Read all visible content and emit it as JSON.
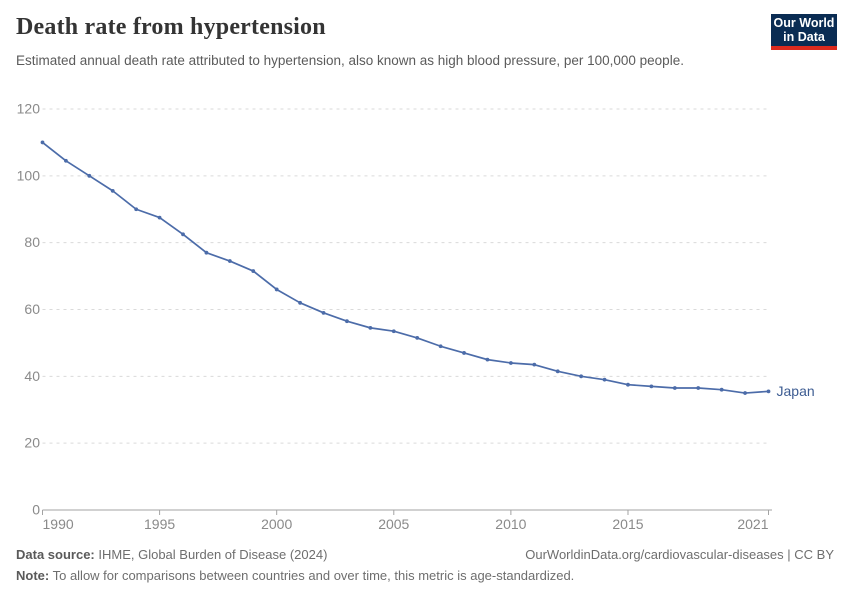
{
  "header": {
    "title": "Death rate from hypertension",
    "subtitle": "Estimated annual death rate attributed to hypertension, also known as high blood pressure, per 100,000 people.",
    "logo": {
      "line1": "Our World",
      "line2": "in Data"
    }
  },
  "chart_data": {
    "type": "line",
    "title": "Death rate from hypertension",
    "x": [
      1990,
      1991,
      1992,
      1993,
      1994,
      1995,
      1996,
      1997,
      1998,
      1999,
      2000,
      2001,
      2002,
      2003,
      2004,
      2005,
      2006,
      2007,
      2008,
      2009,
      2010,
      2011,
      2012,
      2013,
      2014,
      2015,
      2016,
      2017,
      2018,
      2019,
      2020,
      2021
    ],
    "series": [
      {
        "name": "Japan",
        "color": "#4c6ca9",
        "values": [
          110,
          104.5,
          100,
          95.5,
          90,
          87.5,
          82.5,
          77,
          74.5,
          71.5,
          66,
          62,
          59,
          56.5,
          54.5,
          53.5,
          51.5,
          49,
          47,
          45,
          44,
          43.5,
          41.5,
          40,
          39,
          37.5,
          37,
          36.5,
          36.5,
          36,
          35,
          35.5
        ]
      }
    ],
    "xlabel": "",
    "ylabel": "",
    "xlim": [
      1990,
      2021
    ],
    "ylim": [
      0,
      120
    ],
    "x_ticks": [
      1990,
      1995,
      2000,
      2005,
      2010,
      2015,
      2021
    ],
    "y_ticks": [
      0,
      20,
      40,
      60,
      80,
      100,
      120
    ],
    "grid": "horizontal-dashed",
    "legend_position": "end-of-line-label",
    "end_label": "Japan",
    "end_label_color": "#3d5c92"
  },
  "footer": {
    "source_label": "Data source:",
    "source_text": " IHME, Global Burden of Disease (2024)",
    "note_label": "Note:",
    "note_text": " To allow for comparisons between countries and over time, this metric is age-standardized.",
    "link": "OurWorldinData.org/cardiovascular-diseases | CC BY"
  },
  "colors": {
    "accent_line": "#4c6ca9",
    "grid": "#dadada",
    "axis": "#a3a3a3",
    "tick_label": "#8a8a8a",
    "logo_bg": "#0a2c53",
    "logo_red": "#dc2a1d"
  }
}
